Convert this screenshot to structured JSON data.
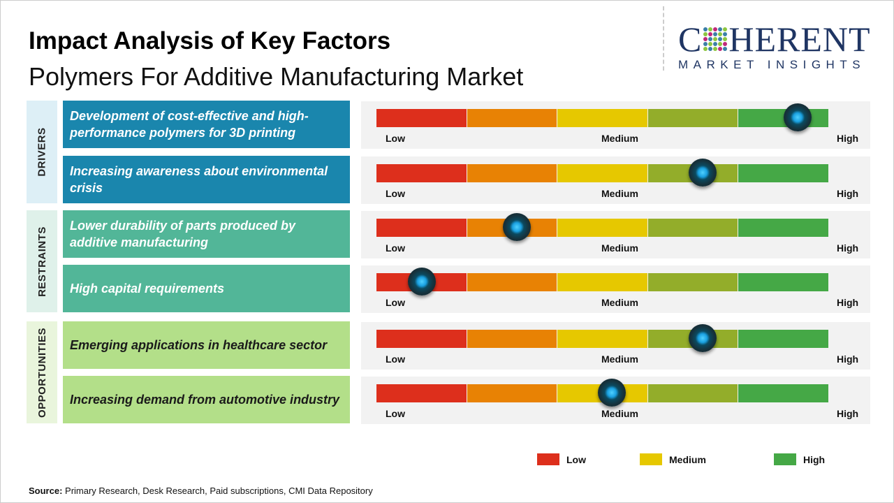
{
  "title": "Impact Analysis of Key Factors",
  "subtitle": "Polymers For Additive Manufacturing Market",
  "logo": {
    "word": "COHERENT",
    "tagline": "MARKET INSIGHTS"
  },
  "chart_data": {
    "type": "gauge-table",
    "scale_labels": [
      "Low",
      "Medium",
      "High"
    ],
    "segment_colors": [
      "#dd2f1c",
      "#e88204",
      "#e6c800",
      "#93ad2a",
      "#45a846"
    ],
    "groups": [
      {
        "name": "DRIVERS",
        "color": "#1a86ad",
        "label_bg": "#ddeff6",
        "factors": [
          {
            "text": "Development of cost-effective and high-performance polymers for 3D printing",
            "impact": 0.93
          },
          {
            "text": "Increasing awareness about environmental crisis",
            "impact": 0.72
          }
        ]
      },
      {
        "name": "RESTRAINTS",
        "color": "#52b698",
        "label_bg": "#dff1ea",
        "factors": [
          {
            "text": "Lower durability of parts produced by additive manufacturing",
            "impact": 0.31
          },
          {
            "text": "High capital requirements",
            "impact": 0.1
          }
        ]
      },
      {
        "name": "OPPORTUNITIES",
        "color": "#b3df89",
        "label_bg": "#e9f5dc",
        "factors": [
          {
            "text": "Emerging applications in healthcare sector",
            "impact": 0.72
          },
          {
            "text": "Increasing demand from automotive industry",
            "impact": 0.52
          }
        ]
      }
    ],
    "legend": [
      {
        "label": "Low",
        "color": "#dd2f1c"
      },
      {
        "label": "Medium",
        "color": "#e6c800"
      },
      {
        "label": "High",
        "color": "#45a846"
      }
    ]
  },
  "source": {
    "label": "Source:",
    "text": " Primary Research, Desk Research, Paid subscriptions, CMI Data Repository"
  }
}
